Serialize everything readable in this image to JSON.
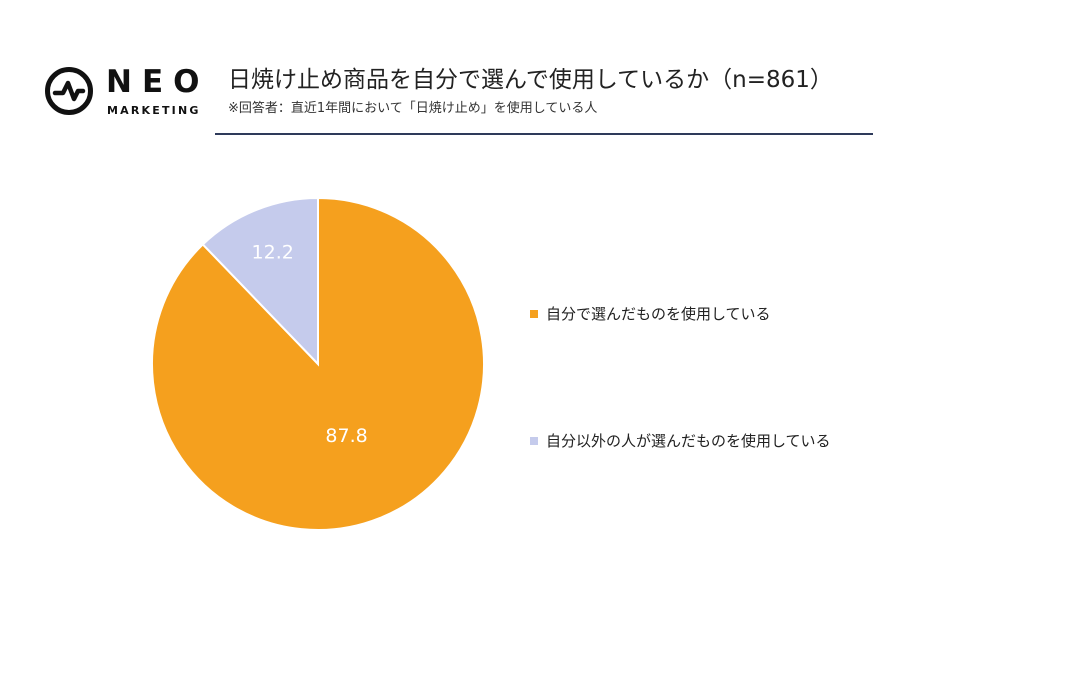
{
  "logo": {
    "wordmark": "NEO",
    "subtext": "MARKETING",
    "icon": "pulse-circle-icon"
  },
  "header": {
    "title": "日焼け止め商品を自分で選んで使用しているか（n=861）",
    "subtitle": "※回答者：直近1年間において「日焼け止め」を使用している人"
  },
  "colors": {
    "orange": "#F5A01E",
    "lavender": "#C5CBEC",
    "rule": "#2E3A5A"
  },
  "chart_data": {
    "type": "pie",
    "title": "日焼け止め商品を自分で選んで使用しているか（n=861）",
    "start": "12 o'clock",
    "direction": "clockwise",
    "legend_position": "right",
    "slices": [
      {
        "label": "自分で選んだものを使用している",
        "value": 87.8,
        "display": "87.8",
        "color": "#F5A01E"
      },
      {
        "label": "自分以外の人が選んだものを使用している",
        "value": 12.2,
        "display": "12.2",
        "color": "#C5CBEC"
      }
    ]
  }
}
